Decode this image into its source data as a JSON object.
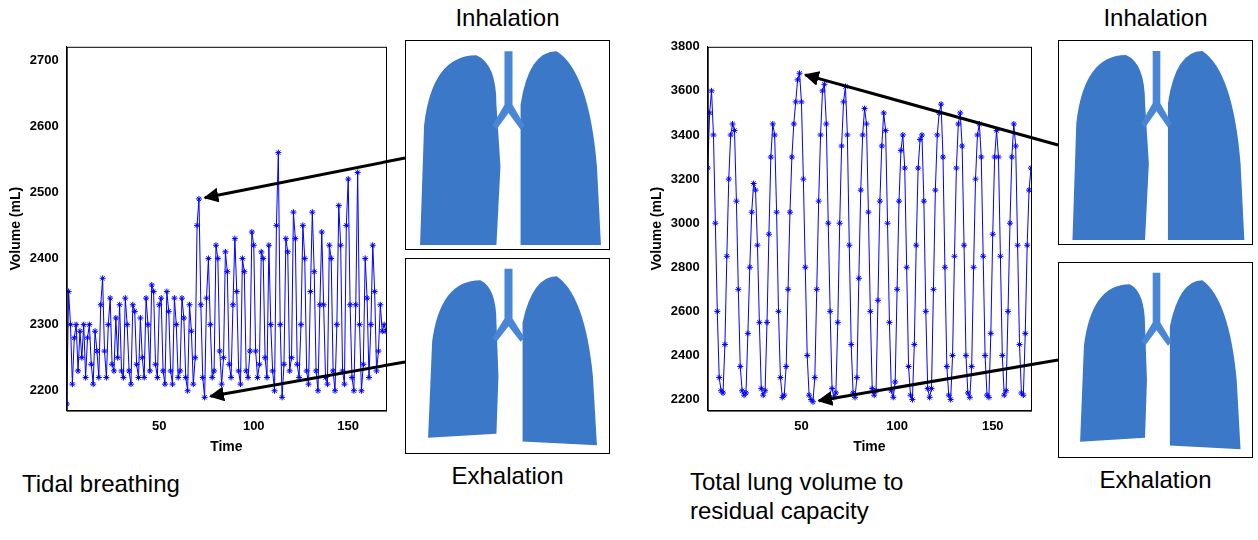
{
  "chart_data": [
    {
      "type": "line",
      "title": "Tidal breathing",
      "x_label": "Time",
      "y_label": "Volume (mL)",
      "xlim": [
        1,
        170
      ],
      "xticks": [
        50,
        100,
        150
      ],
      "ylim": [
        2170,
        2720
      ],
      "yticks": [
        2200,
        2300,
        2400,
        2500,
        2600,
        2700
      ],
      "grid": false,
      "marker": "star",
      "line_style": "solid",
      "color": "#0000ff",
      "annotations": [
        {
          "text": "Inhalation",
          "x": 71,
          "y": 2490
        },
        {
          "text": "Exhalation",
          "x": 74,
          "y": 2190
        }
      ],
      "x": [
        1,
        2,
        3,
        4,
        5,
        6,
        7,
        8,
        9,
        10,
        11,
        12,
        13,
        14,
        15,
        16,
        17,
        18,
        19,
        20,
        21,
        22,
        23,
        24,
        25,
        26,
        27,
        28,
        29,
        30,
        31,
        32,
        33,
        34,
        35,
        36,
        37,
        38,
        39,
        40,
        41,
        42,
        43,
        44,
        45,
        46,
        47,
        48,
        49,
        50,
        51,
        52,
        53,
        54,
        55,
        56,
        57,
        58,
        59,
        60,
        61,
        62,
        63,
        64,
        65,
        66,
        67,
        68,
        69,
        70,
        71,
        72,
        73,
        74,
        75,
        76,
        77,
        78,
        79,
        80,
        81,
        82,
        83,
        84,
        85,
        86,
        87,
        88,
        89,
        90,
        91,
        92,
        93,
        94,
        95,
        96,
        97,
        98,
        99,
        100,
        101,
        102,
        103,
        104,
        105,
        106,
        107,
        108,
        109,
        110,
        111,
        112,
        113,
        114,
        115,
        116,
        117,
        118,
        119,
        120,
        121,
        122,
        123,
        124,
        125,
        126,
        127,
        128,
        129,
        130,
        131,
        132,
        133,
        134,
        135,
        136,
        137,
        138,
        139,
        140,
        141,
        142,
        143,
        144,
        145,
        146,
        147,
        148,
        149,
        150,
        151,
        152,
        153,
        154,
        155,
        156,
        157,
        158,
        159,
        160,
        161,
        162,
        163,
        164,
        165,
        166,
        167,
        168,
        169,
        170
      ],
      "values": [
        2180,
        2350,
        2300,
        2210,
        2280,
        2300,
        2230,
        2290,
        2250,
        2300,
        2220,
        2280,
        2300,
        2240,
        2210,
        2290,
        2260,
        2220,
        2330,
        2370,
        2260,
        2220,
        2300,
        2340,
        2240,
        2230,
        2310,
        2250,
        2330,
        2230,
        2220,
        2340,
        2300,
        2230,
        2210,
        2330,
        2320,
        2240,
        2220,
        2310,
        2250,
        2220,
        2340,
        2300,
        2230,
        2360,
        2350,
        2240,
        2220,
        2330,
        2340,
        2230,
        2210,
        2350,
        2320,
        2230,
        2210,
        2340,
        2300,
        2220,
        2230,
        2340,
        2310,
        2220,
        2200,
        2330,
        2290,
        2210,
        2250,
        2450,
        2490,
        2330,
        2220,
        2190,
        2340,
        2400,
        2300,
        2220,
        2230,
        2420,
        2400,
        2260,
        2210,
        2250,
        2410,
        2380,
        2240,
        2220,
        2330,
        2430,
        2350,
        2230,
        2210,
        2400,
        2380,
        2230,
        2220,
        2260,
        2440,
        2420,
        2260,
        2220,
        2240,
        2410,
        2400,
        2250,
        2220,
        2420,
        2300,
        2230,
        2200,
        2450,
        2560,
        2300,
        2190,
        2240,
        2430,
        2410,
        2230,
        2250,
        2470,
        2430,
        2240,
        2220,
        2300,
        2450,
        2400,
        2230,
        2210,
        2350,
        2470,
        2380,
        2230,
        2200,
        2330,
        2440,
        2330,
        2220,
        2210,
        2420,
        2400,
        2230,
        2200,
        2300,
        2480,
        2420,
        2230,
        2210,
        2450,
        2520,
        2330,
        2220,
        2200,
        2330,
        2530,
        2300,
        2200,
        2240,
        2400,
        2340,
        2220,
        2300,
        2420,
        2350,
        2230,
        2260,
        2330,
        2290,
        2300,
        2290
      ]
    },
    {
      "type": "line",
      "title": "Total lung volume to residual capacity",
      "x_label": "Time",
      "y_label": "Volume (mL)",
      "xlim": [
        1,
        170
      ],
      "xticks": [
        50,
        100,
        150
      ],
      "ylim": [
        2150,
        3800
      ],
      "yticks": [
        2200,
        2400,
        2600,
        2800,
        3000,
        3200,
        3400,
        3600,
        3800
      ],
      "grid": false,
      "marker": "star",
      "line_style": "solid",
      "color": "#0000ff",
      "annotations": [
        {
          "text": "Inhalation",
          "x": 49,
          "y": 3680
        },
        {
          "text": "Exhalation",
          "x": 56,
          "y": 2190
        }
      ],
      "x": [
        1,
        2,
        3,
        4,
        5,
        6,
        7,
        8,
        9,
        10,
        11,
        12,
        13,
        14,
        15,
        16,
        17,
        18,
        19,
        20,
        21,
        22,
        23,
        24,
        25,
        26,
        27,
        28,
        29,
        30,
        31,
        32,
        33,
        34,
        35,
        36,
        37,
        38,
        39,
        40,
        41,
        42,
        43,
        44,
        45,
        46,
        47,
        48,
        49,
        50,
        51,
        52,
        53,
        54,
        55,
        56,
        57,
        58,
        59,
        60,
        61,
        62,
        63,
        64,
        65,
        66,
        67,
        68,
        69,
        70,
        71,
        72,
        73,
        74,
        75,
        76,
        77,
        78,
        79,
        80,
        81,
        82,
        83,
        84,
        85,
        86,
        87,
        88,
        89,
        90,
        91,
        92,
        93,
        94,
        95,
        96,
        97,
        98,
        99,
        100,
        101,
        102,
        103,
        104,
        105,
        106,
        107,
        108,
        109,
        110,
        111,
        112,
        113,
        114,
        115,
        116,
        117,
        118,
        119,
        120,
        121,
        122,
        123,
        124,
        125,
        126,
        127,
        128,
        129,
        130,
        131,
        132,
        133,
        134,
        135,
        136,
        137,
        138,
        139,
        140,
        141,
        142,
        143,
        144,
        145,
        146,
        147,
        148,
        149,
        150,
        151,
        152,
        153,
        154,
        155,
        156,
        157,
        158,
        159,
        160,
        161,
        162,
        163,
        164,
        165,
        166,
        167,
        168,
        169,
        170
      ],
      "values": [
        3250,
        3500,
        3600,
        3400,
        3000,
        2600,
        2300,
        2240,
        2230,
        2450,
        2850,
        3200,
        3400,
        3450,
        3420,
        3100,
        2700,
        2350,
        2240,
        2220,
        2230,
        2500,
        2800,
        3050,
        3180,
        3150,
        2900,
        2550,
        2250,
        2220,
        2240,
        2550,
        2950,
        3300,
        3450,
        3400,
        3050,
        2600,
        2300,
        2210,
        2220,
        2350,
        2700,
        3050,
        3300,
        3450,
        3550,
        3650,
        3680,
        3550,
        3200,
        2800,
        2400,
        2220,
        2200,
        2190,
        2300,
        2700,
        3100,
        3400,
        3600,
        3630,
        3450,
        3000,
        2600,
        2250,
        2210,
        2230,
        2550,
        3000,
        3350,
        3550,
        3620,
        3400,
        2900,
        2450,
        2230,
        2210,
        2300,
        2750,
        3150,
        3400,
        3520,
        3450,
        3050,
        2600,
        2250,
        2220,
        2240,
        2650,
        3100,
        3350,
        3500,
        3420,
        3000,
        2550,
        2240,
        2210,
        2280,
        2700,
        3100,
        3330,
        3400,
        3250,
        2800,
        2350,
        2220,
        2200,
        2450,
        2900,
        3250,
        3380,
        3400,
        3100,
        2600,
        2250,
        2210,
        2250,
        2700,
        3150,
        3400,
        3500,
        3540,
        3300,
        2800,
        2350,
        2220,
        2200,
        2400,
        2850,
        3250,
        3450,
        3500,
        3350,
        2900,
        2400,
        2230,
        2210,
        2350,
        2800,
        3200,
        3400,
        3450,
        3300,
        2850,
        2400,
        2220,
        2210,
        2500,
        2950,
        3300,
        3420,
        3300,
        2850,
        2400,
        2220,
        2240,
        2600,
        3000,
        3300,
        3450,
        3350,
        2900,
        2450,
        2230,
        2220,
        2500,
        2900,
        3150,
        3250
      ]
    }
  ]
}
